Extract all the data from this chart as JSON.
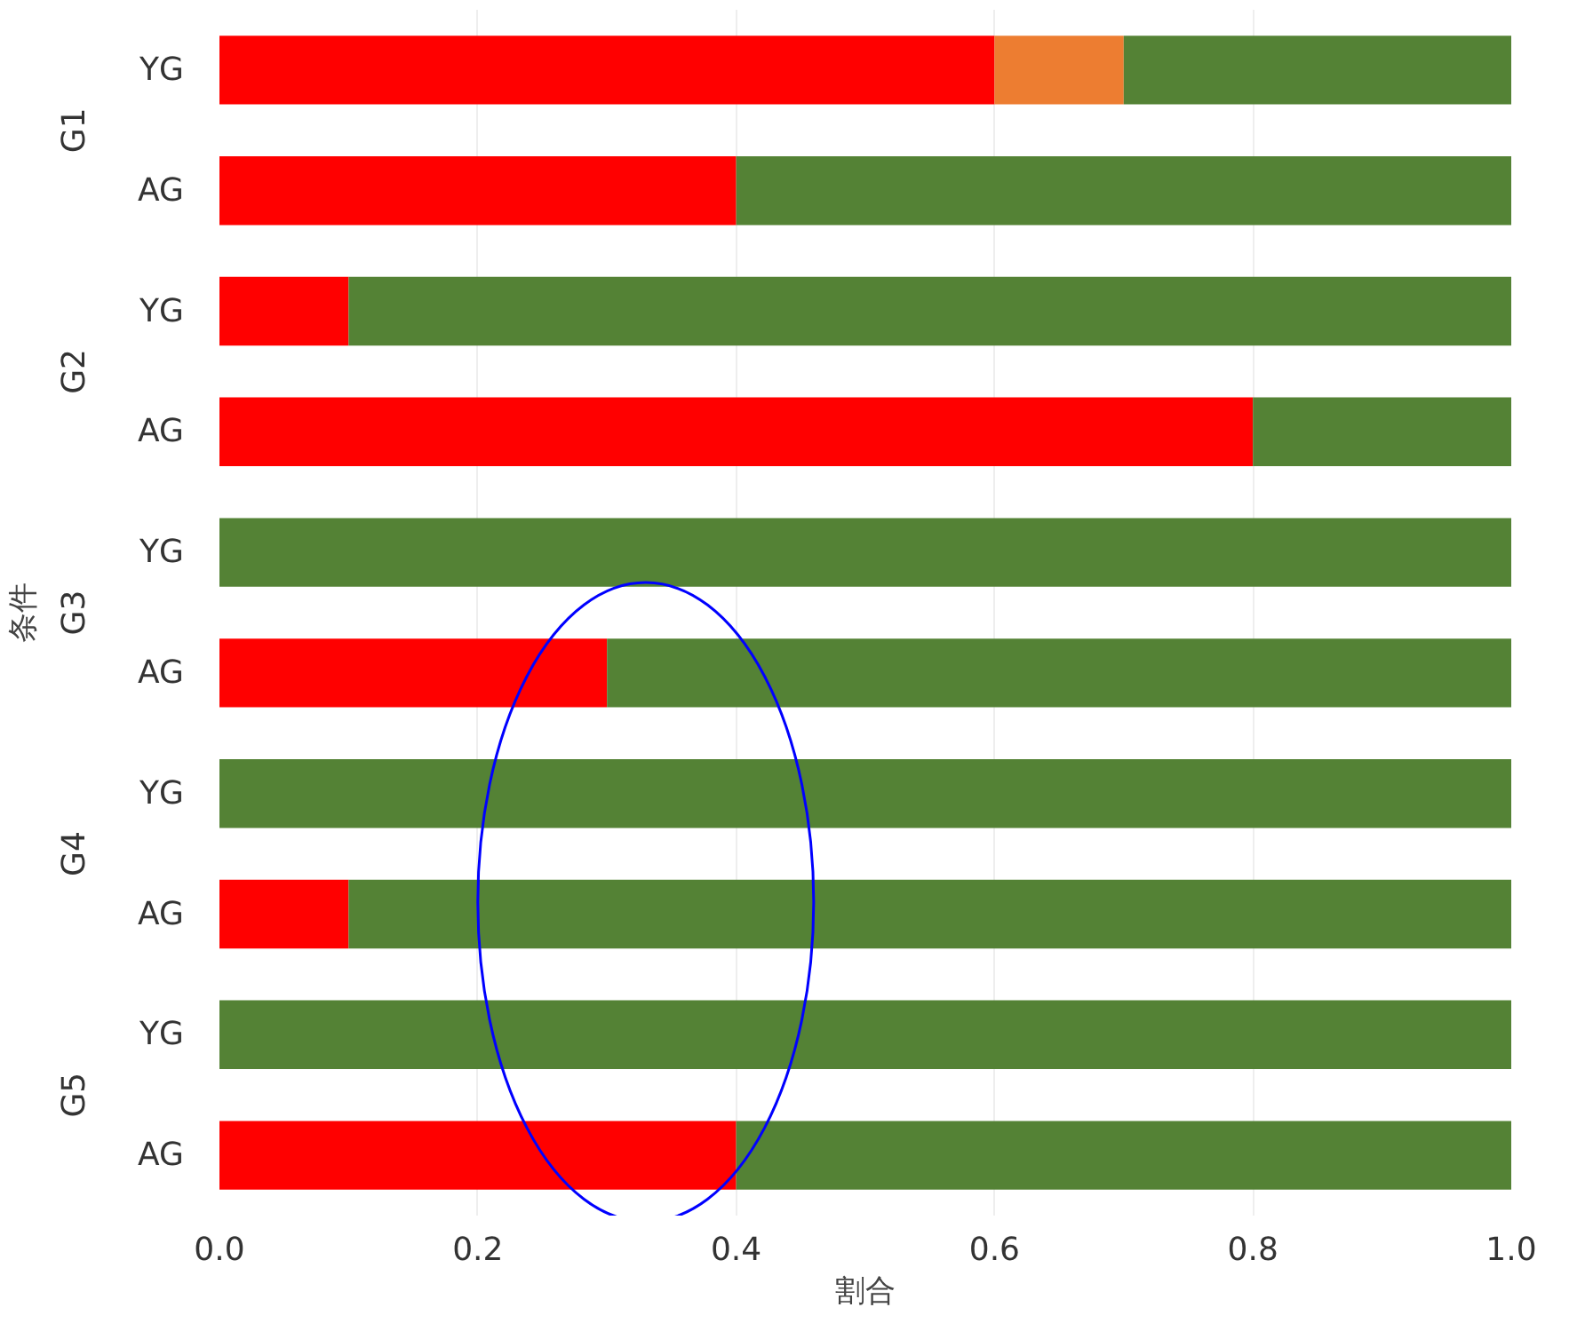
{
  "chart_data": {
    "type": "bar",
    "orientation": "horizontal",
    "stacked": true,
    "xlabel": "割合",
    "ylabel": "条件",
    "categories": [
      "YG",
      "AG",
      "YG",
      "AG",
      "YG",
      "AG",
      "YG",
      "AG",
      "YG",
      "AG"
    ],
    "annotations": [
      "G1",
      "G2",
      "G3",
      "G4",
      "G5"
    ],
    "series": [
      {
        "color": "#ff0000",
        "values": [
          0.6,
          0.4,
          0.1,
          0.8,
          0,
          0.3,
          0,
          0.1,
          0,
          0.4
        ]
      },
      {
        "color": "#ed7d31",
        "values": [
          0.1,
          0,
          0,
          0,
          0,
          0,
          0,
          0,
          0,
          0
        ]
      },
      {
        "color": "#548235",
        "values": [
          0.3,
          0.6,
          0.9,
          0.2,
          1,
          0.7,
          1,
          0.9,
          1,
          0.6
        ]
      }
    ],
    "xlim": [
      0,
      1
    ],
    "xticks": [
      {
        "value": 0,
        "label": "0.0"
      },
      {
        "value": 0.2,
        "label": "0.2"
      },
      {
        "value": 0.4,
        "label": "0.4"
      },
      {
        "value": 0.6,
        "label": "0.6"
      },
      {
        "value": 0.8,
        "label": "0.8"
      },
      {
        "value": 1,
        "label": "1.0"
      }
    ],
    "grid": "x"
  }
}
